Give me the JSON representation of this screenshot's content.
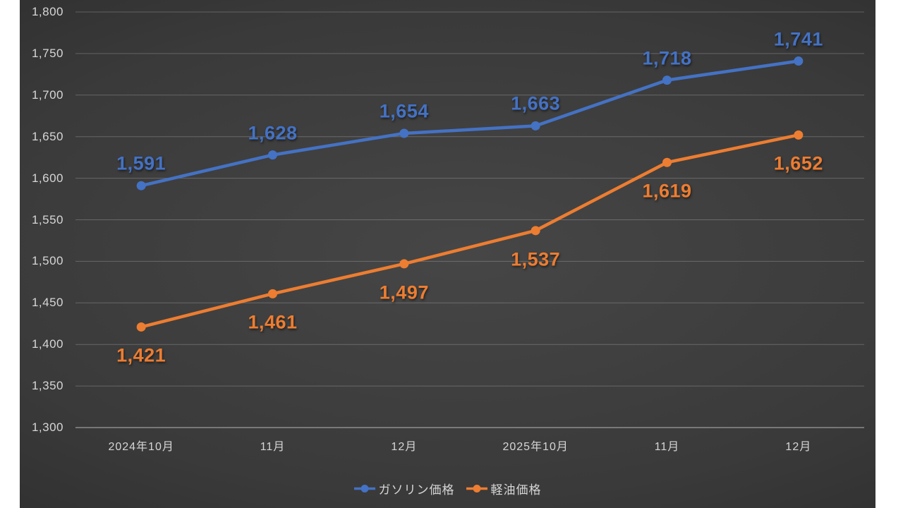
{
  "chart_data": {
    "type": "line",
    "title": "",
    "xlabel": "",
    "ylabel": "",
    "categories": [
      "2024年10月",
      "11月",
      "12月",
      "2025年10月",
      "11月",
      "12月"
    ],
    "series": [
      {
        "name": "ガソリン価格",
        "color": "#4472C4",
        "values": [
          1591,
          1628,
          1654,
          1663,
          1718,
          1741
        ],
        "data_labels": [
          "1,591",
          "1,628",
          "1,654",
          "1,663",
          "1,718",
          "1,741"
        ],
        "data_label_position": "above",
        "marker": "circle"
      },
      {
        "name": "軽油価格",
        "color": "#ED7D31",
        "values": [
          1421,
          1461,
          1497,
          1537,
          1619,
          1652
        ],
        "data_labels": [
          "1,421",
          "1,461",
          "1,497",
          "1,537",
          "1,619",
          "1,652"
        ],
        "data_label_position": "below",
        "marker": "circle"
      }
    ],
    "ylim": [
      1300,
      1800
    ],
    "ytick_step": 50,
    "ytick_labels": [
      "1,800",
      "1,750",
      "1,700",
      "1,650",
      "1,600",
      "1,550",
      "1,500",
      "1,450",
      "1,400",
      "1,350",
      "1,300"
    ],
    "grid": true,
    "legend_position": "bottom-center"
  },
  "colors": {
    "page_background": "#FFFFFF",
    "plot_background_center": "#464646",
    "plot_background_edge": "#232323",
    "gridline": "rgba(255,255,255,0.22)",
    "axis_baseline": "rgba(255,255,255,0.5)",
    "axis_text": "#D6D6D6",
    "series_gasoline_blue": "#4472C4",
    "series_diesel_orange": "#ED7D31"
  }
}
